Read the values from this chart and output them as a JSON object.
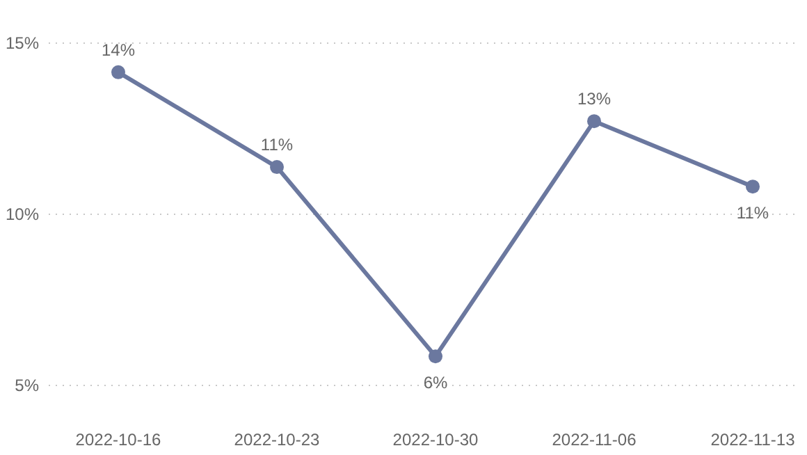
{
  "chart_data": {
    "type": "line",
    "categories": [
      "2022-10-16",
      "2022-10-23",
      "2022-10-30",
      "2022-11-06",
      "2022-11-13"
    ],
    "series": [
      {
        "color": "#6b789f",
        "values": [
          14.15,
          11.38,
          5.85,
          12.72,
          10.81
        ],
        "value_labels": [
          "14%",
          "11%",
          "6%",
          "13%",
          "11%"
        ]
      }
    ],
    "ylim": [
      5,
      15
    ],
    "yticks": [
      {
        "value": 5,
        "label": "5%"
      },
      {
        "value": 10,
        "label": "10%"
      },
      {
        "value": 15,
        "label": "15%"
      }
    ],
    "grid": "y",
    "marker": "circle",
    "line_style": "solid"
  }
}
